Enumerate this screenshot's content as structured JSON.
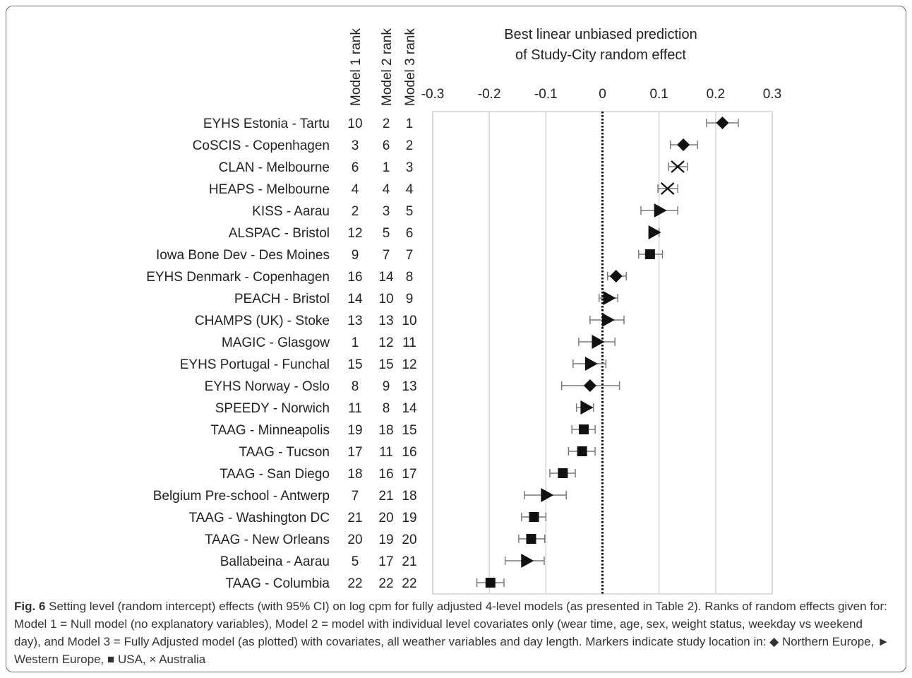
{
  "chart_data": {
    "type": "scatter",
    "title_lines": [
      "Best linear unbiased prediction",
      "of Study-City random effect"
    ],
    "rank_headers": [
      "Model 1  rank",
      "Model 2  rank",
      "Model 3  rank"
    ],
    "x_ticks": [
      -0.3,
      -0.2,
      -0.1,
      0,
      0.1,
      0.2,
      0.3
    ],
    "x_tick_labels": [
      "-0.3",
      "-0.2",
      "-0.1",
      "0",
      "0.1",
      "0.2",
      "0.3"
    ],
    "xlim": [
      -0.3,
      0.3
    ],
    "reference_line": 0,
    "grid": true,
    "marker_colors": {
      "fill": "#111111",
      "error_bar": "#7a7a7a",
      "grid": "#d4d4d4",
      "reference": "#000000"
    },
    "rows": [
      {
        "label": "EYHS Estonia - Tartu",
        "ranks": [
          10,
          2,
          1
        ],
        "estimate": 0.212,
        "ci": [
          0.184,
          0.24
        ],
        "marker": "diamond"
      },
      {
        "label": "CoSCIS - Copenhagen",
        "ranks": [
          3,
          6,
          2
        ],
        "estimate": 0.143,
        "ci": [
          0.12,
          0.168
        ],
        "marker": "diamond"
      },
      {
        "label": "CLAN - Melbourne",
        "ranks": [
          6,
          1,
          3
        ],
        "estimate": 0.133,
        "ci": [
          0.117,
          0.15
        ],
        "marker": "cross"
      },
      {
        "label": "HEAPS - Melbourne",
        "ranks": [
          4,
          4,
          4
        ],
        "estimate": 0.115,
        "ci": [
          0.098,
          0.133
        ],
        "marker": "cross"
      },
      {
        "label": "KISS - Aarau",
        "ranks": [
          2,
          3,
          5
        ],
        "estimate": 0.1,
        "ci": [
          0.068,
          0.133
        ],
        "marker": "triangle"
      },
      {
        "label": "ALSPAC - Bristol",
        "ranks": [
          12,
          5,
          6
        ],
        "estimate": 0.09,
        "ci": [
          0.082,
          0.1
        ],
        "marker": "triangle"
      },
      {
        "label": "Iowa Bone Dev - Des Moines",
        "ranks": [
          9,
          7,
          7
        ],
        "estimate": 0.084,
        "ci": [
          0.064,
          0.106
        ],
        "marker": "square"
      },
      {
        "label": "EYHS Denmark - Copenhagen",
        "ranks": [
          16,
          14,
          8
        ],
        "estimate": 0.024,
        "ci": [
          0.009,
          0.042
        ],
        "marker": "diamond"
      },
      {
        "label": "PEACH - Bristol",
        "ranks": [
          14,
          10,
          9
        ],
        "estimate": 0.01,
        "ci": [
          -0.006,
          0.027
        ],
        "marker": "triangle"
      },
      {
        "label": "CHAMPS (UK) - Stoke",
        "ranks": [
          13,
          13,
          10
        ],
        "estimate": 0.008,
        "ci": [
          -0.022,
          0.038
        ],
        "marker": "triangle"
      },
      {
        "label": "MAGIC - Glasgow",
        "ranks": [
          1,
          12,
          11
        ],
        "estimate": -0.01,
        "ci": [
          -0.042,
          0.022
        ],
        "marker": "triangle"
      },
      {
        "label": "EYHS Portugal - Funchal",
        "ranks": [
          15,
          15,
          12
        ],
        "estimate": -0.022,
        "ci": [
          -0.052,
          0.006
        ],
        "marker": "triangle"
      },
      {
        "label": "EYHS Norway - Oslo",
        "ranks": [
          8,
          9,
          13
        ],
        "estimate": -0.022,
        "ci": [
          -0.072,
          0.03
        ],
        "marker": "diamond"
      },
      {
        "label": "SPEEDY - Norwich",
        "ranks": [
          11,
          8,
          14
        ],
        "estimate": -0.03,
        "ci": [
          -0.046,
          -0.016
        ],
        "marker": "triangle"
      },
      {
        "label": "TAAG - Minneapolis",
        "ranks": [
          19,
          18,
          15
        ],
        "estimate": -0.033,
        "ci": [
          -0.054,
          -0.013
        ],
        "marker": "square"
      },
      {
        "label": "TAAG - Tucson",
        "ranks": [
          17,
          11,
          16
        ],
        "estimate": -0.036,
        "ci": [
          -0.06,
          -0.013
        ],
        "marker": "square"
      },
      {
        "label": "TAAG - San Diego",
        "ranks": [
          18,
          16,
          17
        ],
        "estimate": -0.07,
        "ci": [
          -0.093,
          -0.048
        ],
        "marker": "square"
      },
      {
        "label": "Belgium Pre-school - Antwerp",
        "ranks": [
          7,
          21,
          18
        ],
        "estimate": -0.1,
        "ci": [
          -0.138,
          -0.064
        ],
        "marker": "triangle"
      },
      {
        "label": "TAAG - Washington DC",
        "ranks": [
          21,
          20,
          19
        ],
        "estimate": -0.121,
        "ci": [
          -0.143,
          -0.1
        ],
        "marker": "square"
      },
      {
        "label": "TAAG - New Orleans",
        "ranks": [
          20,
          19,
          20
        ],
        "estimate": -0.126,
        "ci": [
          -0.148,
          -0.102
        ],
        "marker": "square"
      },
      {
        "label": "Ballabeina - Aarau",
        "ranks": [
          5,
          17,
          21
        ],
        "estimate": -0.135,
        "ci": [
          -0.172,
          -0.103
        ],
        "marker": "triangle"
      },
      {
        "label": "TAAG - Columbia",
        "ranks": [
          22,
          22,
          22
        ],
        "estimate": -0.198,
        "ci": [
          -0.222,
          -0.174
        ],
        "marker": "square"
      }
    ]
  },
  "caption": {
    "fig_label": "Fig. 6",
    "text": " Setting level (random intercept) effects (with 95% CI) on log cpm for fully adjusted 4-level models (as presented in Table 2). Ranks of random effects given for: Model 1 = Null model (no explanatory variables), Model 2 = model with individual level covariates only (wear time, age, sex, weight status, weekday vs weekend day), and Model 3 = Fully Adjusted model (as plotted) with covariates, all weather variables and day length. Markers indicate study location in: ◆ Northern Europe, ► Western Europe, ■ USA, × Australia"
  }
}
